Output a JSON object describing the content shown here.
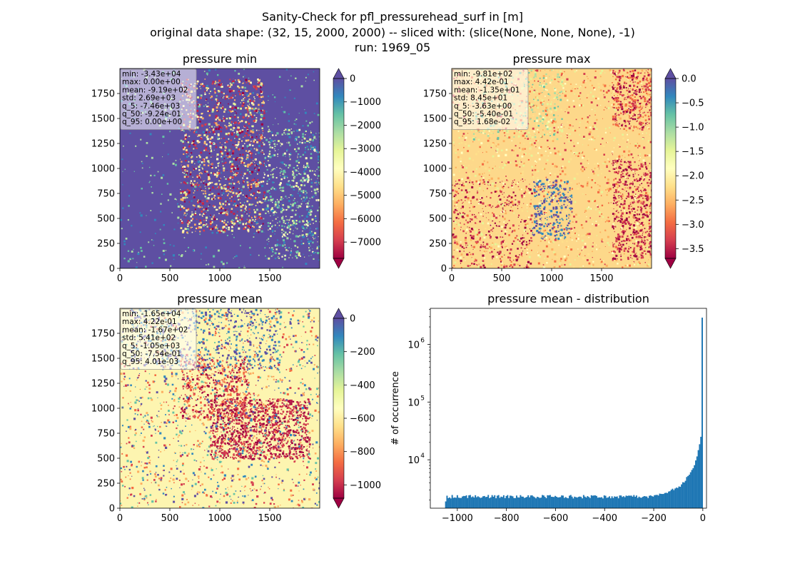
{
  "figure": {
    "title_lines": [
      "Sanity-Check for pfl_pressurehead_surf in [m]",
      "original data shape: (32, 15, 2000, 2000) -- sliced with: (slice(None, None, None), -1)",
      "run: 1969_05"
    ]
  },
  "colormap": {
    "name": "Spectral",
    "stops": [
      "#9e0142",
      "#d53e4f",
      "#f46d43",
      "#fdae61",
      "#fee08b",
      "#ffffbf",
      "#e6f598",
      "#abdda4",
      "#66c2a5",
      "#3288bd",
      "#5e4fa2"
    ]
  },
  "chart_data": [
    {
      "type": "heatmap",
      "title": "pressure min",
      "x_ticks": [
        "0",
        "500",
        "1000",
        "1500"
      ],
      "y_ticks": [
        "0",
        "250",
        "500",
        "750",
        "1000",
        "1250",
        "1500",
        "1750"
      ],
      "xlim": [
        0,
        2000
      ],
      "ylim": [
        0,
        2000
      ],
      "colorbar": {
        "ticks": [
          "0",
          "−1000",
          "−2000",
          "−3000",
          "−4000",
          "−5000",
          "−6000",
          "−7000"
        ],
        "tick_values": [
          0,
          -1000,
          -2000,
          -3000,
          -4000,
          -5000,
          -6000,
          -7000
        ],
        "range": [
          -7700,
          0
        ],
        "extend_top_color": "#5e4fa2",
        "extend_bottom_color": "#9e0142"
      },
      "stats": [
        "min: -3.43e+04",
        "max: 0.00e+00",
        "mean: -9.19e+02",
        "std: 2.69e+03",
        "q_5: -7.46e+03",
        "q_50: -9.24e-01",
        "q_95: 0.00e+00"
      ],
      "dominant_color": "#5e4fa2"
    },
    {
      "type": "heatmap",
      "title": "pressure max",
      "x_ticks": [
        "0",
        "500",
        "1000",
        "1500"
      ],
      "y_ticks": [
        "0",
        "250",
        "500",
        "750",
        "1000",
        "1250",
        "1500",
        "1750"
      ],
      "xlim": [
        0,
        2000
      ],
      "ylim": [
        0,
        2000
      ],
      "colorbar": {
        "ticks": [
          "0.0",
          "−0.5",
          "−1.0",
          "−1.5",
          "−2.0",
          "−2.5",
          "−3.0",
          "−3.5"
        ],
        "tick_values": [
          0,
          -0.5,
          -1.0,
          -1.5,
          -2.0,
          -2.5,
          -3.0,
          -3.5
        ],
        "range": [
          -3.7,
          0
        ],
        "extend_top_color": "#5e4fa2",
        "extend_bottom_color": "#9e0142"
      },
      "stats": [
        "min: -9.81e+02",
        "max: 4.42e-01",
        "mean: -1.35e+01",
        "std: 8.45e+01",
        "q_5: -3.63e+00",
        "q_50: -5.40e-01",
        "q_95: 1.68e-02"
      ],
      "dominant_color": "#fdd88a"
    },
    {
      "type": "heatmap",
      "title": "pressure mean",
      "x_ticks": [
        "0",
        "500",
        "1000",
        "1500"
      ],
      "y_ticks": [
        "0",
        "250",
        "500",
        "750",
        "1000",
        "1250",
        "1500",
        "1750"
      ],
      "xlim": [
        0,
        2000
      ],
      "ylim": [
        0,
        2000
      ],
      "colorbar": {
        "ticks": [
          "0",
          "−200",
          "−400",
          "−600",
          "−800",
          "−1000"
        ],
        "tick_values": [
          0,
          -200,
          -400,
          -600,
          -800,
          -1000
        ],
        "range": [
          -1080,
          0
        ],
        "extend_top_color": "#5e4fa2",
        "extend_bottom_color": "#9e0142"
      },
      "stats": [
        "min: -1.65e+04",
        "max: 4.22e-01",
        "mean: -1.67e+02",
        "std: 5.41e+02",
        "q_5: -1.05e+03",
        "q_50: -7.54e-01",
        "q_95: 4.01e-03"
      ],
      "dominant_color": "#fdf5b0"
    },
    {
      "type": "bar",
      "title": "pressure mean - distribution",
      "xlabel": "",
      "ylabel": "# of occurrence",
      "y_scale": "log",
      "x_ticks": [
        "−1000",
        "−800",
        "−600",
        "−400",
        "−200",
        "0"
      ],
      "x_tick_values": [
        -1000,
        -800,
        -600,
        -400,
        -200,
        0
      ],
      "y_ticks": [
        "10",
        "10",
        "10"
      ],
      "y_tick_exponents": [
        "4",
        "5",
        "6"
      ],
      "y_tick_values": [
        10000,
        100000,
        1000000
      ],
      "xlim": [
        -1110,
        15
      ],
      "ylim": [
        1450,
        4200000
      ],
      "bar_color": "#1f77b4",
      "bin_range": [
        -1050,
        0
      ],
      "bin_count": 200,
      "baseline_count": 2300,
      "spike_counts": [
        {
          "x": -200,
          "y": 2400
        },
        {
          "x": -150,
          "y": 2700
        },
        {
          "x": -100,
          "y": 3300
        },
        {
          "x": -75,
          "y": 4200
        },
        {
          "x": -50,
          "y": 6000
        },
        {
          "x": -30,
          "y": 9000
        },
        {
          "x": -20,
          "y": 13000
        },
        {
          "x": -10,
          "y": 21000
        },
        {
          "x": -5,
          "y": 32000
        },
        {
          "x": 0,
          "y": 2900000
        }
      ]
    }
  ]
}
